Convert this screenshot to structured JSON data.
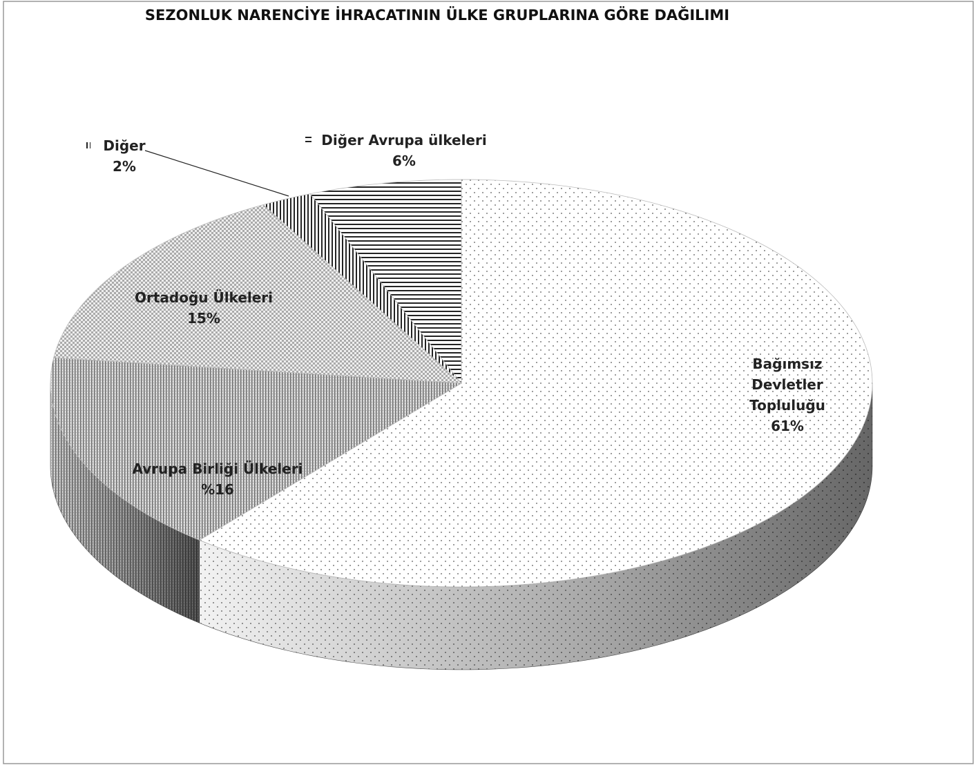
{
  "chart_data": {
    "type": "pie3d",
    "title": "SEZONLUK NARENCİYE İHRACATININ ÜLKE GRUPLARINA GÖRE DAĞILIMI",
    "categories": [
      "Bağımsız Devletler Topluluğu",
      "Avrupa Birliği Ülkeleri",
      "Ortadoğu Ülkeleri",
      "Diğer",
      "Diğer Avrupa ülkeleri"
    ],
    "values": [
      61,
      16,
      15,
      2,
      6
    ],
    "value_labels": [
      "61%",
      "%16",
      "15%",
      "2%",
      "6%"
    ]
  }
}
